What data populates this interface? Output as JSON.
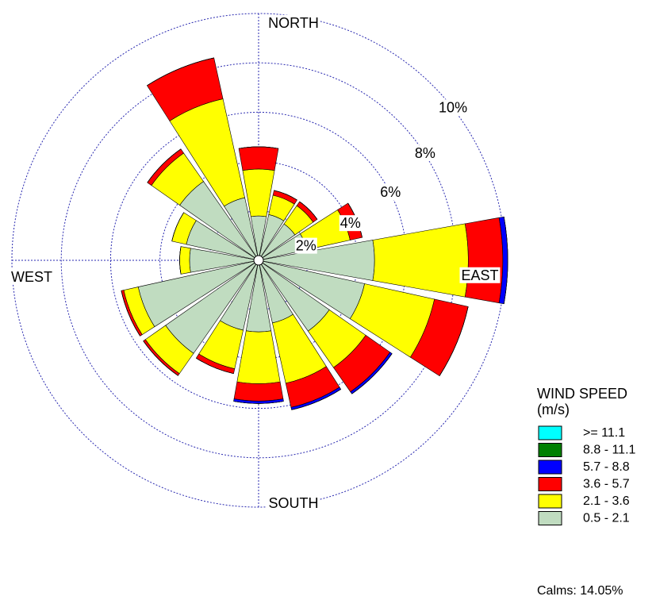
{
  "chart_data": {
    "type": "windrose",
    "categories": [
      null,
      null,
      null,
      null,
      null,
      null,
      null,
      null,
      null,
      null,
      null,
      null,
      null,
      null,
      null,
      null
    ],
    "direction_labels": [
      "NORTH",
      "EAST",
      "SOUTH",
      "WEST"
    ],
    "rlim": [
      0,
      10
    ],
    "rticks": [
      {
        "value": 2,
        "label": "2%"
      },
      {
        "value": 4,
        "label": "4%"
      },
      {
        "value": 6,
        "label": "6%"
      },
      {
        "value": 8,
        "label": "8%"
      },
      {
        "value": 10,
        "label": "10%"
      }
    ],
    "legend_title": [
      "WIND SPEED",
      "(m/s)"
    ],
    "calms": "Calms: 14.05%",
    "series": [
      {
        "name": ">= 11.1",
        "color": "#00ffff",
        "values": [
          0,
          0,
          0,
          0,
          0,
          0,
          0,
          0,
          0,
          0,
          0,
          0,
          0,
          0,
          0,
          0
        ]
      },
      {
        "name": "8.8 - 11.1",
        "color": "#008000",
        "values": [
          0,
          0,
          0,
          0,
          0,
          0,
          0,
          0,
          0,
          0,
          0,
          0,
          0,
          0,
          0,
          0
        ]
      },
      {
        "name": "5.7 - 8.8",
        "color": "#0000ff",
        "values": [
          0,
          0,
          0,
          0,
          0.2,
          0,
          0.1,
          0.1,
          0.1,
          0,
          0,
          0,
          0,
          0,
          0,
          0
        ]
      },
      {
        "name": "3.6 - 5.7",
        "color": "#ff0000",
        "values": [
          0.9,
          0.2,
          0.2,
          0.5,
          1.4,
          1.4,
          1.2,
          1.0,
          0.7,
          0.2,
          0.1,
          0.1,
          0,
          0,
          0.2,
          1.7
        ]
      },
      {
        "name": "2.1 - 3.6",
        "color": "#ffff00",
        "values": [
          1.9,
          0.8,
          0.9,
          1.8,
          3.8,
          2.9,
          1.8,
          2.5,
          2.1,
          1.6,
          1.0,
          0.6,
          0.4,
          0.6,
          1.4,
          4.1
        ]
      },
      {
        "name": "0.5 - 2.1",
        "color": "#c0dcc0",
        "values": [
          1.8,
          1.9,
          1.8,
          2.0,
          4.7,
          4.4,
          3.5,
          2.6,
          2.9,
          2.9,
          4.6,
          5.0,
          2.8,
          3.0,
          3.9,
          2.6
        ]
      }
    ]
  }
}
